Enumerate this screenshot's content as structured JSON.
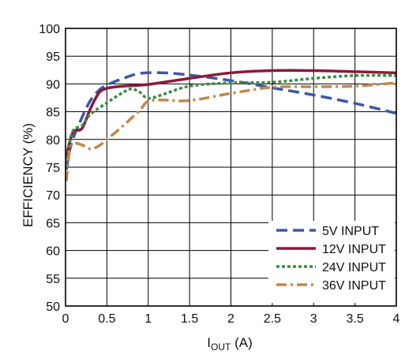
{
  "chart_data": {
    "type": "line",
    "xlabel_main": "I",
    "xlabel_sub": "OUT",
    "xlabel_unit": " (A)",
    "ylabel": "EFFICIENCY (%)",
    "xlim": [
      0,
      4
    ],
    "ylim": [
      50,
      100
    ],
    "xticks": [
      0,
      0.5,
      1,
      1.5,
      2,
      2.5,
      3,
      3.5,
      4
    ],
    "xtick_labels": [
      "0",
      "0.5",
      "1",
      "1.5",
      "2",
      "2.5",
      "3",
      "3.5",
      "4"
    ],
    "yticks": [
      50,
      55,
      60,
      65,
      70,
      75,
      80,
      85,
      90,
      95,
      100
    ],
    "ytick_labels": [
      "50",
      "55",
      "60",
      "65",
      "70",
      "75",
      "80",
      "85",
      "90",
      "95",
      "100"
    ],
    "grid": true,
    "legend_position": "bottom-right",
    "series": [
      {
        "name": "5V INPUT",
        "color": "#3b59a8",
        "dash": "long-dash",
        "points": [
          [
            0.01,
            74.5
          ],
          [
            0.05,
            78
          ],
          [
            0.1,
            80.5
          ],
          [
            0.2,
            84
          ],
          [
            0.3,
            87
          ],
          [
            0.4,
            88.8
          ],
          [
            0.5,
            89.8
          ],
          [
            0.7,
            91
          ],
          [
            0.9,
            91.9
          ],
          [
            1.2,
            92
          ],
          [
            1.5,
            91.6
          ],
          [
            2.0,
            90.6
          ],
          [
            2.5,
            89.3
          ],
          [
            3.0,
            88
          ],
          [
            3.5,
            86.5
          ],
          [
            4.0,
            84.7
          ]
        ]
      },
      {
        "name": "12V INPUT",
        "color": "#8b1a3a",
        "dash": "solid",
        "points": [
          [
            0.01,
            77
          ],
          [
            0.05,
            79.5
          ],
          [
            0.1,
            81.5
          ],
          [
            0.2,
            82
          ],
          [
            0.3,
            85.5
          ],
          [
            0.4,
            88.3
          ],
          [
            0.5,
            89.2
          ],
          [
            0.7,
            89.6
          ],
          [
            1.0,
            89.9
          ],
          [
            1.5,
            91
          ],
          [
            2.0,
            92
          ],
          [
            2.5,
            92.4
          ],
          [
            3.0,
            92.4
          ],
          [
            3.5,
            92.2
          ],
          [
            4.0,
            92
          ]
        ]
      },
      {
        "name": "24V INPUT",
        "color": "#3d8c46",
        "dash": "dotted",
        "points": [
          [
            0.01,
            75.5
          ],
          [
            0.05,
            79.5
          ],
          [
            0.1,
            81.8
          ],
          [
            0.2,
            82.5
          ],
          [
            0.3,
            84.5
          ],
          [
            0.5,
            86.6
          ],
          [
            0.7,
            88.5
          ],
          [
            0.8,
            89.1
          ],
          [
            0.9,
            88.5
          ],
          [
            1.0,
            87.4
          ],
          [
            1.2,
            88.2
          ],
          [
            1.5,
            89.6
          ],
          [
            2.0,
            90.2
          ],
          [
            2.5,
            90.3
          ],
          [
            3.0,
            91
          ],
          [
            3.5,
            91.5
          ],
          [
            4.0,
            91.5
          ]
        ]
      },
      {
        "name": "36V INPUT",
        "color": "#c4874a",
        "dash": "dash-dot",
        "points": [
          [
            0.01,
            72.5
          ],
          [
            0.05,
            78
          ],
          [
            0.1,
            79.3
          ],
          [
            0.2,
            79
          ],
          [
            0.3,
            78.3
          ],
          [
            0.4,
            78.8
          ],
          [
            0.5,
            80
          ],
          [
            0.7,
            82.5
          ],
          [
            0.9,
            85.3
          ],
          [
            1.0,
            86.9
          ],
          [
            1.2,
            87.1
          ],
          [
            1.5,
            87
          ],
          [
            2.0,
            88.3
          ],
          [
            2.5,
            89.4
          ],
          [
            3.0,
            89.5
          ],
          [
            3.5,
            89.6
          ],
          [
            4.0,
            90.2
          ]
        ]
      }
    ]
  }
}
